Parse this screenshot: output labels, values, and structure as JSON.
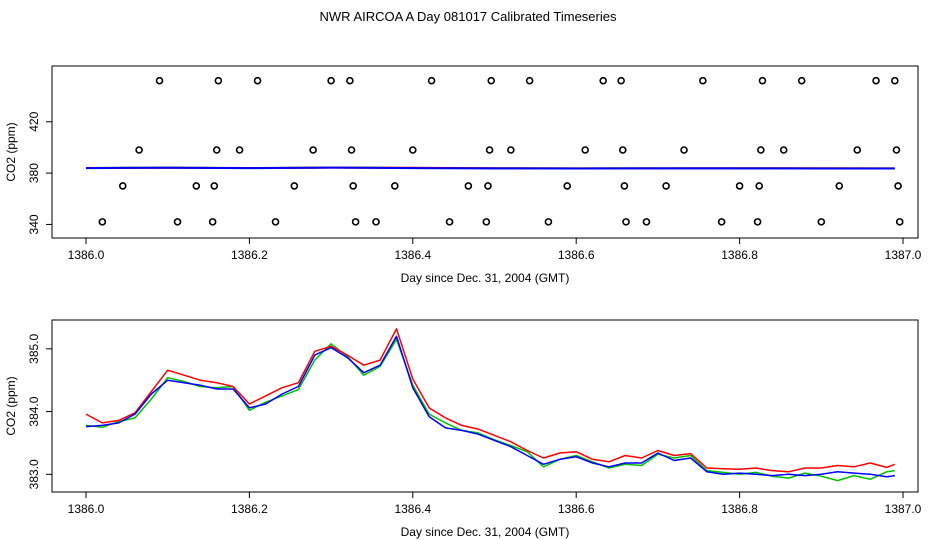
{
  "title": "NWR AIRCOA A  Day 081017  Calibrated Timeseries",
  "colors": {
    "red": "#ff0000",
    "green": "#00c000",
    "blue": "#0000ff",
    "axis": "#000000"
  },
  "chart_data": [
    {
      "type": "scatter",
      "xlabel": "Day since Dec. 31, 2004 (GMT)",
      "ylabel": "CO2 (ppm)",
      "xlim": [
        1386.0,
        1387.0
      ],
      "ylim": [
        338,
        458
      ],
      "xticks": [
        "1386.0",
        "1386.2",
        "1386.4",
        "1386.6",
        "1386.8",
        "1387.0"
      ],
      "xtick_values": [
        1386.0,
        1386.2,
        1386.4,
        1386.6,
        1386.8,
        1387.0
      ],
      "yticks": [
        "340",
        "380",
        "420"
      ],
      "ytick_values": [
        340,
        380,
        420
      ],
      "grid": false,
      "points": [
        {
          "x": 1386.02,
          "y": 342
        },
        {
          "x": 1386.045,
          "y": 370
        },
        {
          "x": 1386.065,
          "y": 398
        },
        {
          "x": 1386.09,
          "y": 452
        },
        {
          "x": 1386.112,
          "y": 342
        },
        {
          "x": 1386.135,
          "y": 370
        },
        {
          "x": 1386.155,
          "y": 342
        },
        {
          "x": 1386.157,
          "y": 370
        },
        {
          "x": 1386.16,
          "y": 398
        },
        {
          "x": 1386.162,
          "y": 452
        },
        {
          "x": 1386.188,
          "y": 398
        },
        {
          "x": 1386.21,
          "y": 452
        },
        {
          "x": 1386.232,
          "y": 342
        },
        {
          "x": 1386.255,
          "y": 370
        },
        {
          "x": 1386.278,
          "y": 398
        },
        {
          "x": 1386.3,
          "y": 452
        },
        {
          "x": 1386.323,
          "y": 452
        },
        {
          "x": 1386.325,
          "y": 398
        },
        {
          "x": 1386.327,
          "y": 370
        },
        {
          "x": 1386.33,
          "y": 342
        },
        {
          "x": 1386.355,
          "y": 342
        },
        {
          "x": 1386.378,
          "y": 370
        },
        {
          "x": 1386.4,
          "y": 398
        },
        {
          "x": 1386.423,
          "y": 452
        },
        {
          "x": 1386.445,
          "y": 342
        },
        {
          "x": 1386.468,
          "y": 370
        },
        {
          "x": 1386.49,
          "y": 342
        },
        {
          "x": 1386.492,
          "y": 370
        },
        {
          "x": 1386.494,
          "y": 398
        },
        {
          "x": 1386.496,
          "y": 452
        },
        {
          "x": 1386.52,
          "y": 398
        },
        {
          "x": 1386.543,
          "y": 452
        },
        {
          "x": 1386.566,
          "y": 342
        },
        {
          "x": 1386.589,
          "y": 370
        },
        {
          "x": 1386.611,
          "y": 398
        },
        {
          "x": 1386.633,
          "y": 452
        },
        {
          "x": 1386.655,
          "y": 452
        },
        {
          "x": 1386.657,
          "y": 398
        },
        {
          "x": 1386.659,
          "y": 370
        },
        {
          "x": 1386.661,
          "y": 342
        },
        {
          "x": 1386.686,
          "y": 342
        },
        {
          "x": 1386.71,
          "y": 370
        },
        {
          "x": 1386.732,
          "y": 398
        },
        {
          "x": 1386.755,
          "y": 452
        },
        {
          "x": 1386.778,
          "y": 342
        },
        {
          "x": 1386.8,
          "y": 370
        },
        {
          "x": 1386.822,
          "y": 342
        },
        {
          "x": 1386.824,
          "y": 370
        },
        {
          "x": 1386.826,
          "y": 398
        },
        {
          "x": 1386.828,
          "y": 452
        },
        {
          "x": 1386.854,
          "y": 398
        },
        {
          "x": 1386.876,
          "y": 452
        },
        {
          "x": 1386.9,
          "y": 342
        },
        {
          "x": 1386.922,
          "y": 370
        },
        {
          "x": 1386.944,
          "y": 398
        },
        {
          "x": 1386.967,
          "y": 452
        },
        {
          "x": 1386.99,
          "y": 452
        },
        {
          "x": 1386.992,
          "y": 398
        },
        {
          "x": 1386.994,
          "y": 370
        },
        {
          "x": 1386.996,
          "y": 342
        }
      ],
      "series": [
        {
          "color": "#00c000",
          "x": [
            1386.0,
            1386.1,
            1386.2,
            1386.3,
            1386.4,
            1386.5,
            1386.6,
            1386.7,
            1386.8,
            1386.9,
            1386.99
          ],
          "y": [
            384.0,
            384.3,
            383.9,
            384.4,
            384.0,
            383.8,
            383.7,
            383.8,
            383.8,
            383.7,
            383.7
          ]
        },
        {
          "color": "#ff0000",
          "x": [
            1386.0,
            1386.1,
            1386.2,
            1386.3,
            1386.4,
            1386.5,
            1386.6,
            1386.7,
            1386.8,
            1386.9,
            1386.99
          ],
          "y": [
            384.0,
            384.2,
            384.0,
            384.3,
            384.1,
            383.8,
            383.7,
            383.7,
            383.8,
            383.8,
            383.7
          ]
        },
        {
          "color": "#0000ff",
          "x": [
            1386.0,
            1386.1,
            1386.2,
            1386.3,
            1386.4,
            1386.5,
            1386.6,
            1386.7,
            1386.8,
            1386.9,
            1386.99
          ],
          "y": [
            383.9,
            384.2,
            383.9,
            384.3,
            383.9,
            383.7,
            383.6,
            383.7,
            383.7,
            383.6,
            383.6
          ]
        }
      ]
    },
    {
      "type": "line",
      "xlabel": "Day since Dec. 31, 2004 (GMT)",
      "ylabel": "CO2 (ppm)",
      "xlim": [
        1386.0,
        1387.0
      ],
      "ylim": [
        382.75,
        385.38
      ],
      "xticks": [
        "1386.0",
        "1386.2",
        "1386.4",
        "1386.6",
        "1386.8",
        "1387.0"
      ],
      "xtick_values": [
        1386.0,
        1386.2,
        1386.4,
        1386.6,
        1386.8,
        1387.0
      ],
      "yticks": [
        "383.0",
        "384.0",
        "385.0"
      ],
      "ytick_values": [
        383.0,
        384.0,
        385.0
      ],
      "grid": false,
      "series": [
        {
          "color": "#00c000",
          "x": [
            1386.0,
            1386.02,
            1386.04,
            1386.06,
            1386.08,
            1386.1,
            1386.12,
            1386.14,
            1386.16,
            1386.18,
            1386.2,
            1386.22,
            1386.24,
            1386.26,
            1386.28,
            1386.3,
            1386.32,
            1386.34,
            1386.36,
            1386.38,
            1386.4,
            1386.42,
            1386.44,
            1386.46,
            1386.48,
            1386.5,
            1386.52,
            1386.54,
            1386.56,
            1386.58,
            1386.6,
            1386.62,
            1386.64,
            1386.66,
            1386.68,
            1386.7,
            1386.72,
            1386.74,
            1386.76,
            1386.78,
            1386.8,
            1386.82,
            1386.84,
            1386.86,
            1386.88,
            1386.9,
            1386.92,
            1386.94,
            1386.96,
            1386.98,
            1386.99
          ],
          "y": [
            383.78,
            383.75,
            383.84,
            383.9,
            384.2,
            384.54,
            384.48,
            384.4,
            384.38,
            384.4,
            384.02,
            384.15,
            384.25,
            384.35,
            384.82,
            385.08,
            384.88,
            384.58,
            384.72,
            385.15,
            384.42,
            383.96,
            383.82,
            383.7,
            383.66,
            383.55,
            383.46,
            383.36,
            383.12,
            383.24,
            383.3,
            383.2,
            383.1,
            383.16,
            383.14,
            383.32,
            383.26,
            383.3,
            383.06,
            383.03,
            383.0,
            383.03,
            382.97,
            382.94,
            383.02,
            382.97,
            382.9,
            382.98,
            382.92,
            383.04,
            383.06
          ]
        },
        {
          "color": "#ff0000",
          "x": [
            1386.0,
            1386.02,
            1386.04,
            1386.06,
            1386.08,
            1386.1,
            1386.12,
            1386.14,
            1386.16,
            1386.18,
            1386.2,
            1386.22,
            1386.24,
            1386.26,
            1386.28,
            1386.3,
            1386.32,
            1386.34,
            1386.36,
            1386.38,
            1386.4,
            1386.42,
            1386.44,
            1386.46,
            1386.48,
            1386.5,
            1386.52,
            1386.54,
            1386.56,
            1386.58,
            1386.6,
            1386.62,
            1386.64,
            1386.66,
            1386.68,
            1386.7,
            1386.72,
            1386.74,
            1386.76,
            1386.78,
            1386.8,
            1386.82,
            1386.84,
            1386.86,
            1386.88,
            1386.9,
            1386.92,
            1386.94,
            1386.96,
            1386.98,
            1386.99
          ],
          "y": [
            383.96,
            383.82,
            383.86,
            383.98,
            384.32,
            384.66,
            384.58,
            384.5,
            384.46,
            384.4,
            384.12,
            384.25,
            384.38,
            384.46,
            384.96,
            385.04,
            384.9,
            384.74,
            384.82,
            385.32,
            384.52,
            384.06,
            383.9,
            383.78,
            383.72,
            383.62,
            383.52,
            383.38,
            383.26,
            383.34,
            383.36,
            383.24,
            383.2,
            383.3,
            383.26,
            383.38,
            383.3,
            383.33,
            383.1,
            383.09,
            383.08,
            383.1,
            383.06,
            383.04,
            383.1,
            383.1,
            383.14,
            383.12,
            383.18,
            383.11,
            383.16
          ]
        },
        {
          "color": "#0000ff",
          "x": [
            1386.0,
            1386.02,
            1386.04,
            1386.06,
            1386.08,
            1386.1,
            1386.12,
            1386.14,
            1386.16,
            1386.18,
            1386.2,
            1386.22,
            1386.24,
            1386.26,
            1386.28,
            1386.3,
            1386.32,
            1386.34,
            1386.36,
            1386.38,
            1386.4,
            1386.42,
            1386.44,
            1386.46,
            1386.48,
            1386.5,
            1386.52,
            1386.54,
            1386.56,
            1386.58,
            1386.6,
            1386.62,
            1386.64,
            1386.66,
            1386.68,
            1386.7,
            1386.72,
            1386.74,
            1386.76,
            1386.78,
            1386.8,
            1386.82,
            1386.84,
            1386.86,
            1386.88,
            1386.9,
            1386.92,
            1386.94,
            1386.96,
            1386.98,
            1386.99
          ],
          "y": [
            383.76,
            383.78,
            383.82,
            383.96,
            384.28,
            384.5,
            384.46,
            384.42,
            384.36,
            384.36,
            384.06,
            384.12,
            384.28,
            384.4,
            384.9,
            385.02,
            384.86,
            384.62,
            384.74,
            385.2,
            384.38,
            383.92,
            383.74,
            383.7,
            383.64,
            383.54,
            383.44,
            383.3,
            383.16,
            383.24,
            383.28,
            383.18,
            383.12,
            383.18,
            383.18,
            383.34,
            383.22,
            383.26,
            383.04,
            383.0,
            383.02,
            383.0,
            382.98,
            383.0,
            382.98,
            383.0,
            383.04,
            383.02,
            383.0,
            382.96,
            382.98
          ]
        }
      ]
    }
  ]
}
